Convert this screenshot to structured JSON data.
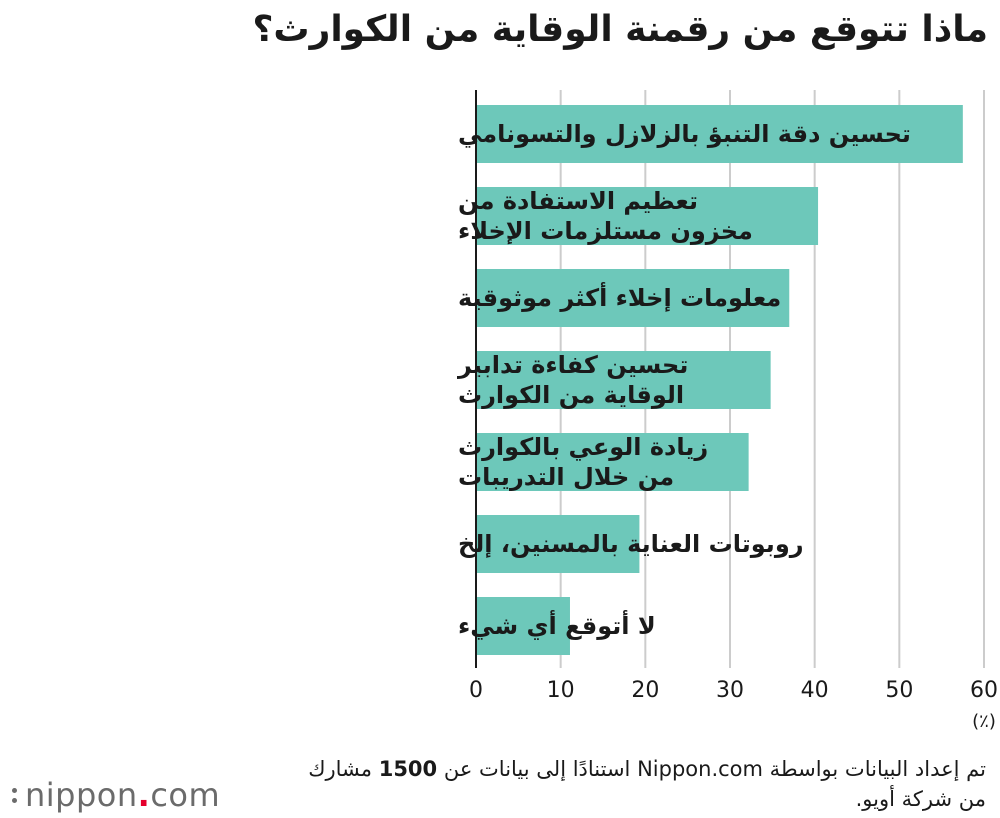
{
  "title": "ماذا تتوقع من رقمنة الوقاية من الكوارث؟",
  "chart_data": {
    "type": "bar",
    "orientation": "horizontal",
    "categories": [
      [
        "تحسين دقة التنبؤ بالزلازل والتسونامي"
      ],
      [
        "تعظيم الاستفادة من",
        "مخزون مستلزمات الإخلاء"
      ],
      [
        "معلومات إخلاء أكثر موثوقية"
      ],
      [
        "تحسين كفاءة تدابير",
        "الوقاية من الكوارث"
      ],
      [
        "زيادة الوعي بالكوارث",
        "من خلال التدريبات"
      ],
      [
        "روبوتات العناية بالمسنين، إلخ"
      ],
      [
        "لا أتوقع أي شيء"
      ]
    ],
    "values": [
      57.5,
      40.4,
      37.0,
      34.8,
      32.2,
      19.3,
      11.1
    ],
    "xlim": [
      0,
      60
    ],
    "xticks": [
      0,
      10,
      20,
      30,
      40,
      50,
      60
    ],
    "xunit": "(٪)",
    "grid": true,
    "bar_color": "#6dc8ba",
    "grid_color": "#cccccc"
  },
  "note": {
    "line1_pre": "تم إعداد البيانات بواسطة Nippon.com استنادًا إلى بيانات عن ",
    "line1_num": "1500",
    "line1_post": " مشارك",
    "line2": "من شركة أويو."
  },
  "logo": {
    "name": "nippon",
    "dot": ".",
    "suffix": "com"
  }
}
